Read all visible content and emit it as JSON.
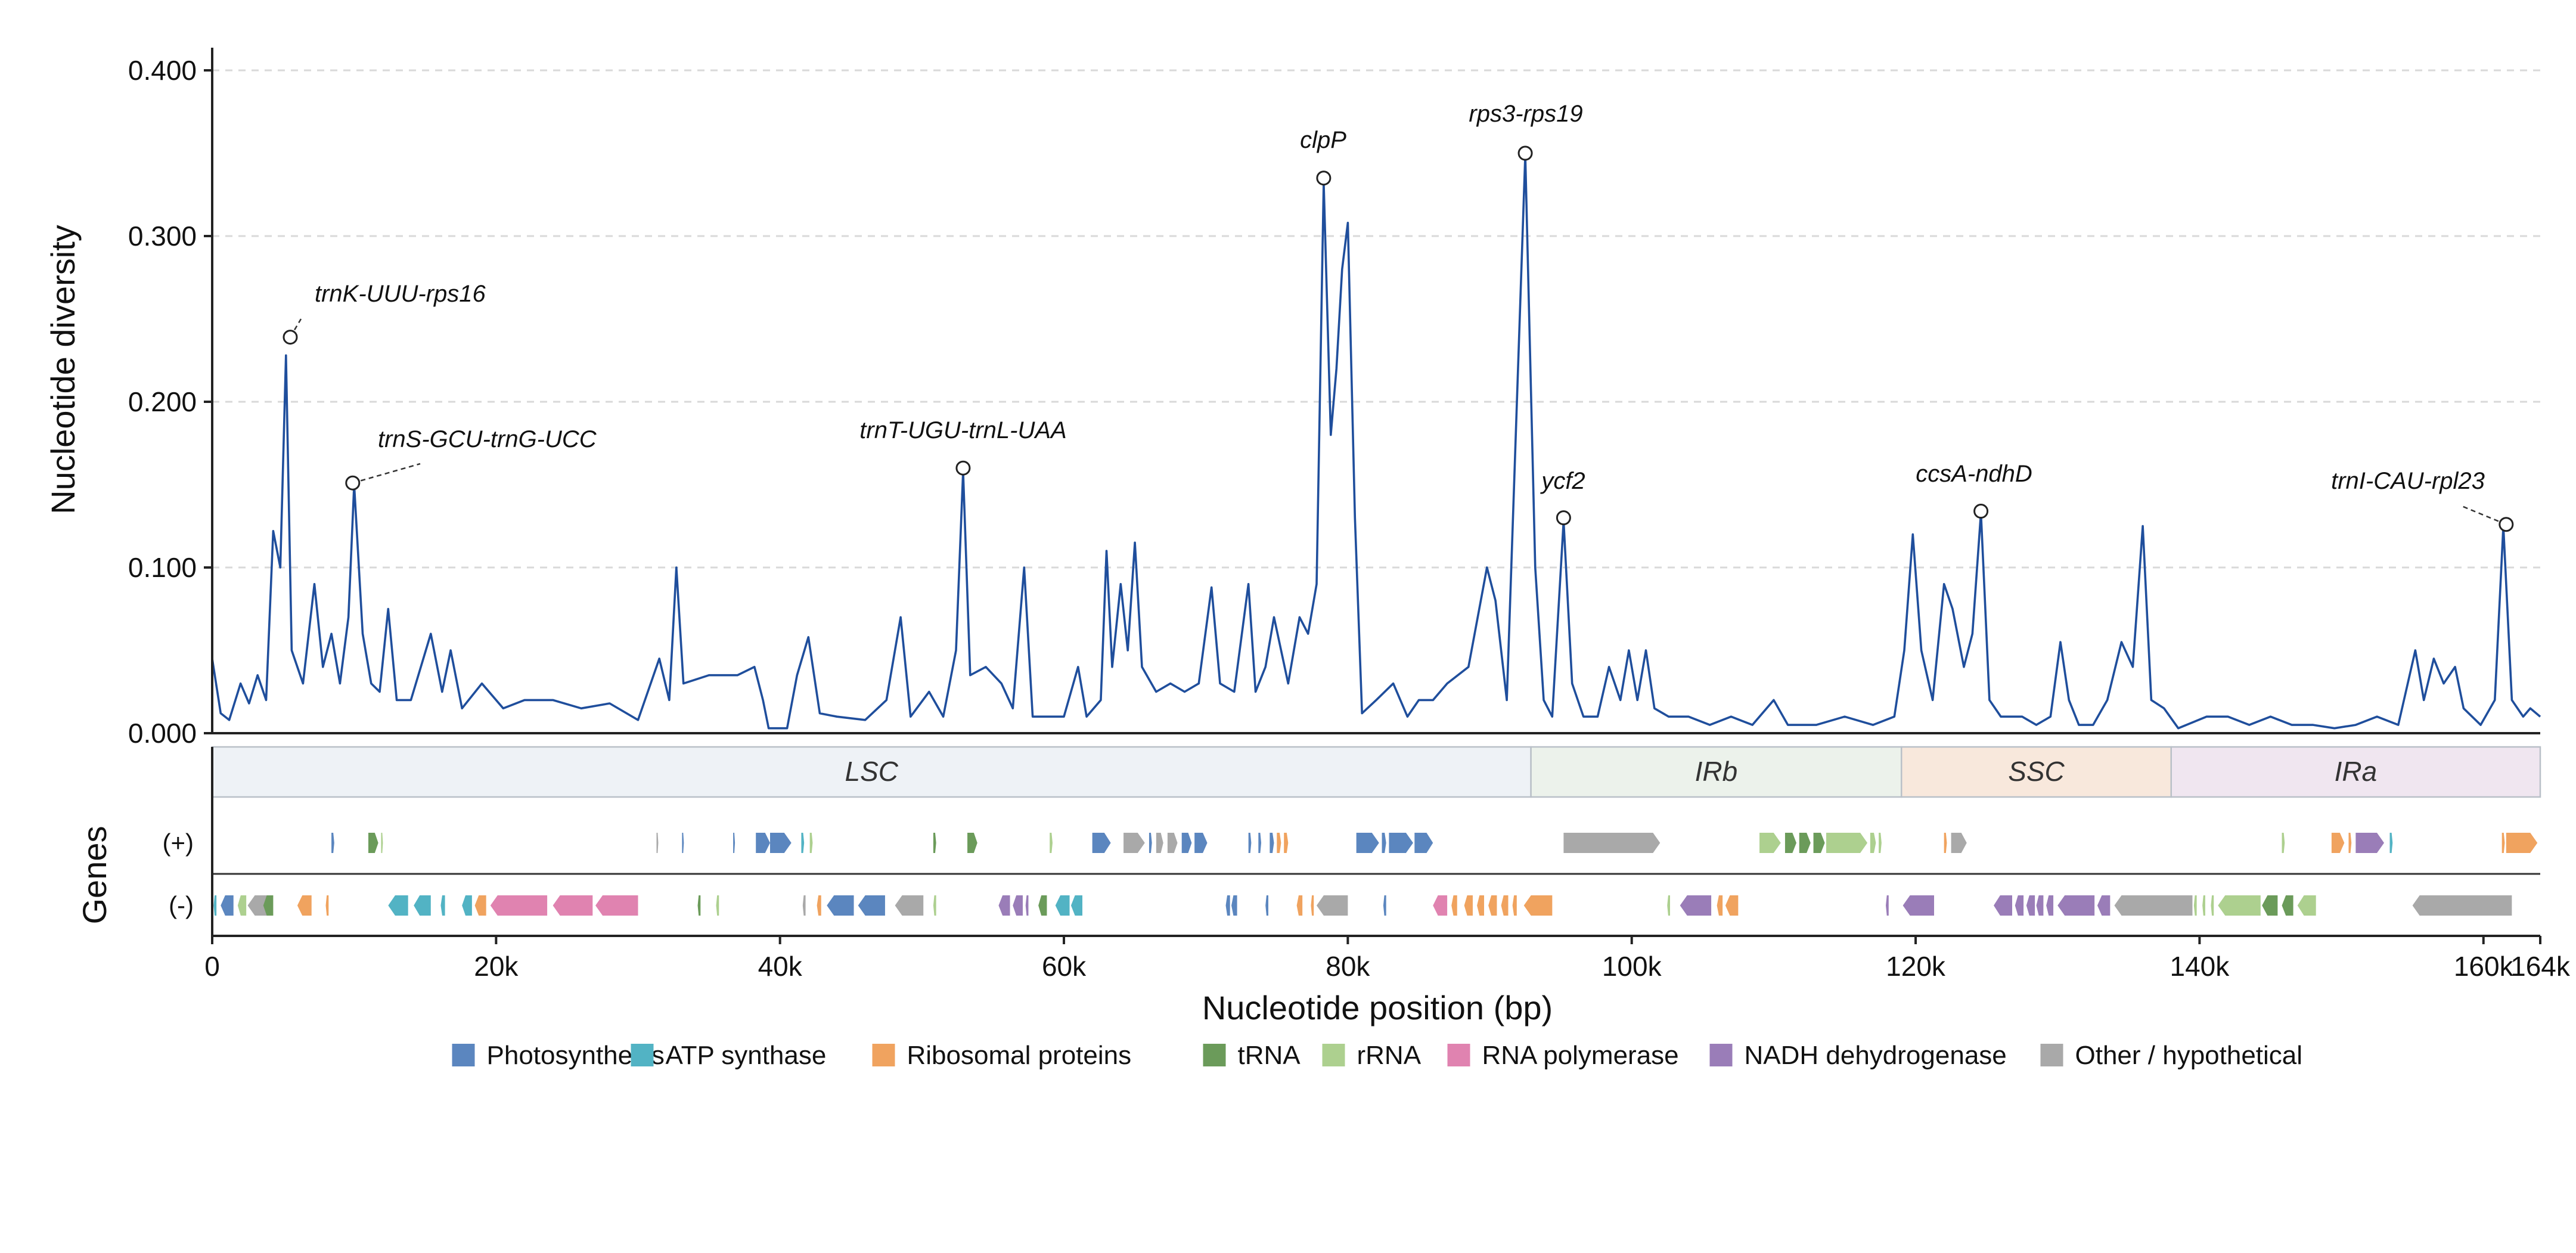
{
  "chart_data": {
    "type": "line",
    "ylabel": "Nucleotide diversity",
    "xlabel": "Nucleotide position (bp)",
    "genes_label": "Genes",
    "strand_labels": {
      "plus": "(+)",
      "minus": "(-)"
    },
    "ylim": [
      0,
      0.4
    ],
    "xlim": [
      0,
      164000
    ],
    "y_ticks": [
      {
        "value": 0.0,
        "label": "0.000"
      },
      {
        "value": 0.1,
        "label": "0.100"
      },
      {
        "value": 0.2,
        "label": "0.200"
      },
      {
        "value": 0.3,
        "label": "0.300"
      },
      {
        "value": 0.4,
        "label": "0.400"
      }
    ],
    "x_ticks": [
      {
        "value": 0,
        "label": "0"
      },
      {
        "value": 20000,
        "label": "20k"
      },
      {
        "value": 40000,
        "label": "40k"
      },
      {
        "value": 60000,
        "label": "60k"
      },
      {
        "value": 80000,
        "label": "80k"
      },
      {
        "value": 100000,
        "label": "100k"
      },
      {
        "value": 120000,
        "label": "120k"
      },
      {
        "value": 140000,
        "label": "140k"
      },
      {
        "value": 160000,
        "label": "160k"
      },
      {
        "value": 164000,
        "label": "164k"
      }
    ],
    "grid": "horizontal-dashed",
    "line_color": "#1f4e9c",
    "series_points": [
      [
        0,
        0.045
      ],
      [
        600,
        0.012
      ],
      [
        1200,
        0.008
      ],
      [
        2000,
        0.03
      ],
      [
        2600,
        0.018
      ],
      [
        3200,
        0.035
      ],
      [
        3800,
        0.02
      ],
      [
        4300,
        0.122
      ],
      [
        4800,
        0.1
      ],
      [
        5200,
        0.228
      ],
      [
        5600,
        0.05
      ],
      [
        6400,
        0.03
      ],
      [
        7200,
        0.09
      ],
      [
        7800,
        0.04
      ],
      [
        8400,
        0.06
      ],
      [
        9000,
        0.03
      ],
      [
        9600,
        0.07
      ],
      [
        10000,
        0.15
      ],
      [
        10600,
        0.06
      ],
      [
        11200,
        0.03
      ],
      [
        11800,
        0.025
      ],
      [
        12400,
        0.075
      ],
      [
        13000,
        0.02
      ],
      [
        14000,
        0.02
      ],
      [
        15400,
        0.06
      ],
      [
        16200,
        0.025
      ],
      [
        16800,
        0.05
      ],
      [
        17600,
        0.015
      ],
      [
        19000,
        0.03
      ],
      [
        20500,
        0.015
      ],
      [
        22000,
        0.02
      ],
      [
        24000,
        0.02
      ],
      [
        26000,
        0.015
      ],
      [
        28000,
        0.018
      ],
      [
        30000,
        0.008
      ],
      [
        31500,
        0.045
      ],
      [
        32200,
        0.02
      ],
      [
        32700,
        0.1
      ],
      [
        33200,
        0.03
      ],
      [
        35000,
        0.035
      ],
      [
        37000,
        0.035
      ],
      [
        38200,
        0.04
      ],
      [
        38800,
        0.02
      ],
      [
        39200,
        0.003
      ],
      [
        40500,
        0.003
      ],
      [
        41200,
        0.035
      ],
      [
        42000,
        0.058
      ],
      [
        42800,
        0.012
      ],
      [
        44000,
        0.01
      ],
      [
        46000,
        0.008
      ],
      [
        47500,
        0.02
      ],
      [
        48500,
        0.07
      ],
      [
        49200,
        0.01
      ],
      [
        50500,
        0.025
      ],
      [
        51500,
        0.01
      ],
      [
        52400,
        0.05
      ],
      [
        52900,
        0.158
      ],
      [
        53400,
        0.035
      ],
      [
        54500,
        0.04
      ],
      [
        55600,
        0.03
      ],
      [
        56400,
        0.015
      ],
      [
        57200,
        0.1
      ],
      [
        57800,
        0.01
      ],
      [
        58800,
        0.01
      ],
      [
        60000,
        0.01
      ],
      [
        61000,
        0.04
      ],
      [
        61600,
        0.01
      ],
      [
        62600,
        0.02
      ],
      [
        63000,
        0.11
      ],
      [
        63400,
        0.04
      ],
      [
        64000,
        0.09
      ],
      [
        64500,
        0.05
      ],
      [
        65000,
        0.115
      ],
      [
        65500,
        0.04
      ],
      [
        66500,
        0.025
      ],
      [
        67500,
        0.03
      ],
      [
        68500,
        0.025
      ],
      [
        69500,
        0.03
      ],
      [
        70400,
        0.088
      ],
      [
        71000,
        0.03
      ],
      [
        72000,
        0.025
      ],
      [
        73000,
        0.09
      ],
      [
        73500,
        0.025
      ],
      [
        74200,
        0.04
      ],
      [
        74800,
        0.07
      ],
      [
        75800,
        0.03
      ],
      [
        76600,
        0.07
      ],
      [
        77200,
        0.06
      ],
      [
        77800,
        0.09
      ],
      [
        78300,
        0.332
      ],
      [
        78800,
        0.18
      ],
      [
        79200,
        0.22
      ],
      [
        79600,
        0.28
      ],
      [
        80000,
        0.308
      ],
      [
        80500,
        0.13
      ],
      [
        81000,
        0.012
      ],
      [
        82000,
        0.02
      ],
      [
        83200,
        0.03
      ],
      [
        84200,
        0.01
      ],
      [
        85000,
        0.02
      ],
      [
        86000,
        0.02
      ],
      [
        87000,
        0.03
      ],
      [
        88500,
        0.04
      ],
      [
        89800,
        0.1
      ],
      [
        90400,
        0.08
      ],
      [
        91200,
        0.02
      ],
      [
        92500,
        0.349
      ],
      [
        93200,
        0.1
      ],
      [
        93800,
        0.02
      ],
      [
        94400,
        0.01
      ],
      [
        95200,
        0.128
      ],
      [
        95800,
        0.03
      ],
      [
        96600,
        0.01
      ],
      [
        97600,
        0.01
      ],
      [
        98400,
        0.04
      ],
      [
        99200,
        0.02
      ],
      [
        99800,
        0.05
      ],
      [
        100400,
        0.02
      ],
      [
        101000,
        0.05
      ],
      [
        101600,
        0.015
      ],
      [
        102600,
        0.01
      ],
      [
        104000,
        0.01
      ],
      [
        105500,
        0.005
      ],
      [
        107000,
        0.01
      ],
      [
        108500,
        0.005
      ],
      [
        110000,
        0.02
      ],
      [
        111000,
        0.005
      ],
      [
        113000,
        0.005
      ],
      [
        115000,
        0.01
      ],
      [
        117000,
        0.005
      ],
      [
        118500,
        0.01
      ],
      [
        119200,
        0.05
      ],
      [
        119800,
        0.12
      ],
      [
        120400,
        0.05
      ],
      [
        121200,
        0.02
      ],
      [
        122000,
        0.09
      ],
      [
        122600,
        0.075
      ],
      [
        123400,
        0.04
      ],
      [
        124000,
        0.06
      ],
      [
        124600,
        0.133
      ],
      [
        125200,
        0.02
      ],
      [
        126000,
        0.01
      ],
      [
        127500,
        0.01
      ],
      [
        128500,
        0.005
      ],
      [
        129500,
        0.01
      ],
      [
        130200,
        0.055
      ],
      [
        130800,
        0.02
      ],
      [
        131500,
        0.005
      ],
      [
        132500,
        0.005
      ],
      [
        133500,
        0.02
      ],
      [
        134500,
        0.055
      ],
      [
        135300,
        0.04
      ],
      [
        136000,
        0.125
      ],
      [
        136600,
        0.02
      ],
      [
        137500,
        0.015
      ],
      [
        138500,
        0.003
      ],
      [
        140500,
        0.01
      ],
      [
        142000,
        0.01
      ],
      [
        143500,
        0.005
      ],
      [
        145000,
        0.01
      ],
      [
        146500,
        0.005
      ],
      [
        148000,
        0.005
      ],
      [
        149500,
        0.003
      ],
      [
        151000,
        0.005
      ],
      [
        152500,
        0.01
      ],
      [
        154000,
        0.005
      ],
      [
        155200,
        0.05
      ],
      [
        155800,
        0.02
      ],
      [
        156500,
        0.045
      ],
      [
        157200,
        0.03
      ],
      [
        158000,
        0.04
      ],
      [
        158600,
        0.015
      ],
      [
        159800,
        0.005
      ],
      [
        160800,
        0.02
      ],
      [
        161400,
        0.125
      ],
      [
        162000,
        0.02
      ],
      [
        162800,
        0.01
      ],
      [
        163300,
        0.015
      ],
      [
        164000,
        0.01
      ]
    ],
    "peaks": [
      {
        "x": 5500,
        "y": 0.239,
        "label": "trnK-UUU-rps16",
        "leader": true
      },
      {
        "x": 9900,
        "y": 0.151,
        "label": "trnS-GCU-trnG-UCC",
        "leader": true
      },
      {
        "x": 52900,
        "y": 0.16,
        "label": "trnT-UGU-trnL-UAA",
        "leader": false
      },
      {
        "x": 78300,
        "y": 0.335,
        "label": "clpP",
        "leader": false
      },
      {
        "x": 92500,
        "y": 0.35,
        "label": "rps3-rps19",
        "leader": false
      },
      {
        "x": 95200,
        "y": 0.13,
        "label": "ycf2",
        "leader": false
      },
      {
        "x": 124600,
        "y": 0.134,
        "label": "ccsA-ndhD",
        "leader": false
      },
      {
        "x": 161600,
        "y": 0.126,
        "label": "trnI-CAU-rpl23",
        "leader": true
      }
    ],
    "regions": [
      {
        "label": "LSC",
        "start": 0,
        "end": 92900,
        "color": "#eef2f6"
      },
      {
        "label": "IRb",
        "start": 92900,
        "end": 119000,
        "color": "#ecf2eb"
      },
      {
        "label": "SSC",
        "start": 119000,
        "end": 138000,
        "color": "#f8e8dc"
      },
      {
        "label": "IRa",
        "start": 138000,
        "end": 164000,
        "color": "#f0e6f0"
      }
    ],
    "gene_categories": [
      {
        "key": "photo",
        "label": "Photosynthesis",
        "color": "#5b86bf"
      },
      {
        "key": "atp",
        "label": "ATP synthase",
        "color": "#52b3c4"
      },
      {
        "key": "ribo",
        "label": "Ribosomal proteins",
        "color": "#f0a35f"
      },
      {
        "key": "trna",
        "label": "tRNA",
        "color": "#6b9b5a"
      },
      {
        "key": "rrna",
        "label": "rRNA",
        "color": "#add08f"
      },
      {
        "key": "rpo",
        "label": "RNA polymerase",
        "color": "#e083b0"
      },
      {
        "key": "ndh",
        "label": "NADH dehydrogenase",
        "color": "#9a7db8"
      },
      {
        "key": "other",
        "label": "Other / hypothetical",
        "color": "#a9a9a9"
      }
    ],
    "genes_plus": [
      [
        8400,
        8600,
        "photo"
      ],
      [
        11000,
        11700,
        "trna"
      ],
      [
        11900,
        12000,
        "rrna"
      ],
      [
        31300,
        31400,
        "other"
      ],
      [
        33100,
        33200,
        "photo"
      ],
      [
        36700,
        36800,
        "photo"
      ],
      [
        38300,
        39300,
        "photo"
      ],
      [
        39300,
        40800,
        "photo"
      ],
      [
        41500,
        41700,
        "atp"
      ],
      [
        42100,
        42300,
        "rrna"
      ],
      [
        50800,
        51000,
        "trna"
      ],
      [
        53200,
        53900,
        "trna"
      ],
      [
        59000,
        59200,
        "rrna"
      ],
      [
        62000,
        63300,
        "photo"
      ],
      [
        64200,
        65700,
        "other"
      ],
      [
        66000,
        66200,
        "photo"
      ],
      [
        66500,
        67000,
        "other"
      ],
      [
        67300,
        68000,
        "other"
      ],
      [
        68300,
        69000,
        "photo"
      ],
      [
        69200,
        70100,
        "photo"
      ],
      [
        73000,
        73200,
        "photo"
      ],
      [
        73700,
        73900,
        "photo"
      ],
      [
        74500,
        74800,
        "photo"
      ],
      [
        75000,
        75300,
        "ribo"
      ],
      [
        75500,
        75800,
        "ribo"
      ],
      [
        80600,
        82200,
        "photo"
      ],
      [
        82400,
        82700,
        "photo"
      ],
      [
        82900,
        84600,
        "photo"
      ],
      [
        84700,
        86000,
        "photo"
      ],
      [
        95200,
        102000,
        "other"
      ],
      [
        109000,
        110500,
        "rrna"
      ],
      [
        110800,
        111600,
        "trna"
      ],
      [
        111800,
        112600,
        "trna"
      ],
      [
        112800,
        113600,
        "trna"
      ],
      [
        113700,
        116600,
        "rrna"
      ],
      [
        116800,
        117200,
        "rrna"
      ],
      [
        117400,
        117600,
        "rrna"
      ],
      [
        122000,
        122200,
        "ribo"
      ],
      [
        122500,
        123600,
        "other"
      ],
      [
        145800,
        146000,
        "rrna"
      ],
      [
        149300,
        150200,
        "ribo"
      ],
      [
        150500,
        150700,
        "ribo"
      ],
      [
        151000,
        153000,
        "ndh"
      ],
      [
        153400,
        153600,
        "atp"
      ],
      [
        161300,
        161500,
        "ribo"
      ],
      [
        161600,
        163800,
        "ribo"
      ]
    ],
    "genes_minus": [
      [
        100,
        300,
        "atp"
      ],
      [
        600,
        1500,
        "photo"
      ],
      [
        1800,
        2400,
        "rrna"
      ],
      [
        2500,
        4000,
        "other"
      ],
      [
        3600,
        4300,
        "trna"
      ],
      [
        6000,
        7000,
        "ribo"
      ],
      [
        8000,
        8200,
        "ribo"
      ],
      [
        12400,
        13800,
        "atp"
      ],
      [
        14200,
        15400,
        "atp"
      ],
      [
        16100,
        16400,
        "atp"
      ],
      [
        17600,
        18300,
        "atp"
      ],
      [
        18500,
        19300,
        "ribo"
      ],
      [
        19600,
        23600,
        "rpo"
      ],
      [
        24000,
        26800,
        "rpo"
      ],
      [
        27000,
        30000,
        "rpo"
      ],
      [
        34200,
        34400,
        "trna"
      ],
      [
        35500,
        35700,
        "rrna"
      ],
      [
        41600,
        41800,
        "other"
      ],
      [
        42600,
        42900,
        "ribo"
      ],
      [
        43300,
        45200,
        "photo"
      ],
      [
        45500,
        47400,
        "photo"
      ],
      [
        48100,
        50100,
        "other"
      ],
      [
        50800,
        51000,
        "rrna"
      ],
      [
        55400,
        56200,
        "ndh"
      ],
      [
        56400,
        57100,
        "ndh"
      ],
      [
        57300,
        57500,
        "ndh"
      ],
      [
        58200,
        58800,
        "trna"
      ],
      [
        59400,
        60400,
        "atp"
      ],
      [
        60500,
        61300,
        "atp"
      ],
      [
        71400,
        71700,
        "photo"
      ],
      [
        71800,
        72200,
        "photo"
      ],
      [
        74200,
        74400,
        "photo"
      ],
      [
        76400,
        76800,
        "ribo"
      ],
      [
        77400,
        77600,
        "ribo"
      ],
      [
        77800,
        80000,
        "other"
      ],
      [
        82500,
        82700,
        "photo"
      ],
      [
        86000,
        87000,
        "rpo"
      ],
      [
        87300,
        87700,
        "ribo"
      ],
      [
        88200,
        88800,
        "ribo"
      ],
      [
        89100,
        89600,
        "ribo"
      ],
      [
        89900,
        90500,
        "ribo"
      ],
      [
        90800,
        91300,
        "ribo"
      ],
      [
        91600,
        91900,
        "ribo"
      ],
      [
        92400,
        94400,
        "ribo"
      ],
      [
        102500,
        102700,
        "rrna"
      ],
      [
        103400,
        105600,
        "ndh"
      ],
      [
        106000,
        106400,
        "ribo"
      ],
      [
        106600,
        107500,
        "ribo"
      ],
      [
        117900,
        118100,
        "ndh"
      ],
      [
        119100,
        121300,
        "ndh"
      ],
      [
        125500,
        126800,
        "ndh"
      ],
      [
        127000,
        127600,
        "ndh"
      ],
      [
        127800,
        128400,
        "ndh"
      ],
      [
        128500,
        129000,
        "ndh"
      ],
      [
        129200,
        129700,
        "ndh"
      ],
      [
        130000,
        132600,
        "ndh"
      ],
      [
        132800,
        133700,
        "ndh"
      ],
      [
        134000,
        139500,
        "other"
      ],
      [
        139600,
        139800,
        "rrna"
      ],
      [
        140200,
        140400,
        "rrna"
      ],
      [
        140800,
        141000,
        "rrna"
      ],
      [
        141300,
        144300,
        "rrna"
      ],
      [
        144400,
        145500,
        "trna"
      ],
      [
        145800,
        146600,
        "trna"
      ],
      [
        146900,
        148200,
        "rrna"
      ],
      [
        155000,
        162000,
        "other"
      ]
    ]
  }
}
